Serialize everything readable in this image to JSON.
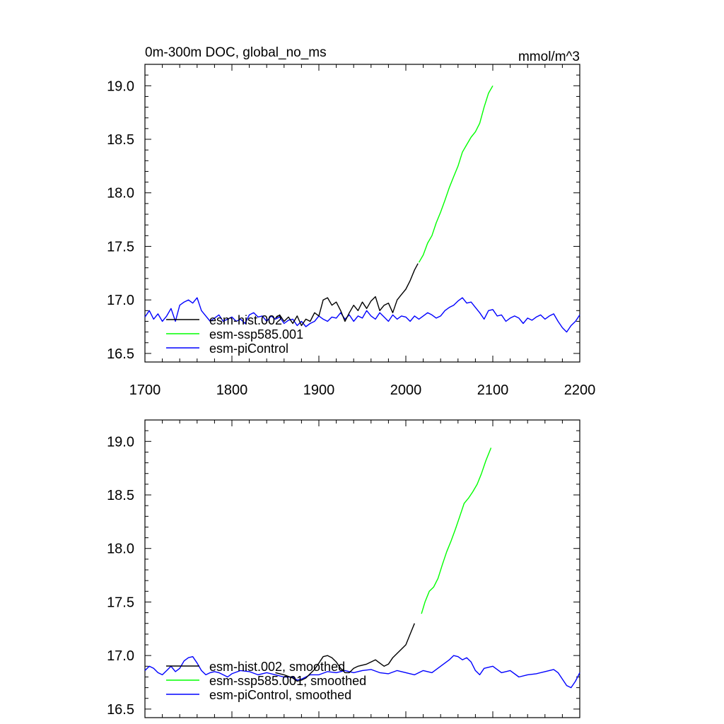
{
  "chart_data": [
    {
      "type": "line",
      "title": "0m-300m DOC, global_no_ms",
      "units": "mmol/m^3",
      "xlim": [
        1700,
        2200
      ],
      "ylim": [
        16.42,
        19.2
      ],
      "x_ticks": [
        "1700",
        "1800",
        "1900",
        "2000",
        "2100",
        "2200"
      ],
      "y_ticks": [
        "16.5",
        "17.0",
        "17.5",
        "18.0",
        "18.5",
        "19.0"
      ],
      "legend_position": "bottom-left",
      "series": [
        {
          "name": "esm-hist.002",
          "color": "#000000",
          "x": [
            1850,
            1855,
            1860,
            1865,
            1870,
            1875,
            1880,
            1885,
            1890,
            1895,
            1900,
            1905,
            1910,
            1915,
            1920,
            1925,
            1930,
            1935,
            1940,
            1945,
            1950,
            1955,
            1960,
            1965,
            1970,
            1975,
            1980,
            1985,
            1990,
            1995,
            2000,
            2005,
            2010,
            2014
          ],
          "y": [
            16.83,
            16.86,
            16.8,
            16.84,
            16.78,
            16.85,
            16.76,
            16.82,
            16.8,
            16.88,
            16.85,
            17.0,
            17.02,
            16.95,
            16.98,
            16.9,
            16.8,
            16.88,
            16.95,
            16.9,
            16.98,
            16.92,
            16.99,
            17.03,
            16.9,
            16.95,
            16.97,
            16.88,
            17.0,
            17.05,
            17.1,
            17.18,
            17.28,
            17.34
          ]
        },
        {
          "name": "esm-ssp585.001",
          "color": "#00ff00",
          "x": [
            2015,
            2020,
            2025,
            2030,
            2035,
            2040,
            2045,
            2050,
            2055,
            2060,
            2065,
            2070,
            2075,
            2080,
            2085,
            2090,
            2095,
            2100
          ],
          "y": [
            17.35,
            17.42,
            17.53,
            17.6,
            17.72,
            17.82,
            17.93,
            18.05,
            18.15,
            18.25,
            18.38,
            18.45,
            18.52,
            18.57,
            18.65,
            18.8,
            18.93,
            19.0
          ]
        },
        {
          "name": "esm-piControl",
          "color": "#0000ff",
          "x": [
            1700,
            1705,
            1710,
            1715,
            1720,
            1725,
            1730,
            1735,
            1740,
            1745,
            1750,
            1755,
            1760,
            1765,
            1770,
            1775,
            1780,
            1785,
            1790,
            1795,
            1800,
            1805,
            1810,
            1815,
            1820,
            1825,
            1830,
            1835,
            1840,
            1845,
            1850,
            1855,
            1860,
            1865,
            1870,
            1875,
            1880,
            1885,
            1890,
            1895,
            1900,
            1905,
            1910,
            1915,
            1920,
            1925,
            1930,
            1935,
            1940,
            1945,
            1950,
            1955,
            1960,
            1965,
            1970,
            1975,
            1980,
            1985,
            1990,
            1995,
            2000,
            2005,
            2010,
            2015,
            2020,
            2025,
            2030,
            2035,
            2040,
            2045,
            2050,
            2055,
            2060,
            2065,
            2070,
            2075,
            2080,
            2085,
            2090,
            2095,
            2100,
            2105,
            2110,
            2115,
            2120,
            2125,
            2130,
            2135,
            2140,
            2145,
            2150,
            2155,
            2160,
            2165,
            2170,
            2175,
            2180,
            2185,
            2190,
            2195,
            2200
          ],
          "y": [
            16.84,
            16.9,
            16.82,
            16.87,
            16.8,
            16.85,
            16.92,
            16.8,
            16.95,
            16.98,
            17.0,
            16.97,
            17.02,
            16.9,
            16.85,
            16.8,
            16.83,
            16.86,
            16.8,
            16.82,
            16.84,
            16.8,
            16.82,
            16.78,
            16.86,
            16.88,
            16.84,
            16.85,
            16.8,
            16.85,
            16.82,
            16.84,
            16.78,
            16.81,
            16.82,
            16.76,
            16.8,
            16.75,
            16.78,
            16.8,
            16.85,
            16.82,
            16.8,
            16.84,
            16.83,
            16.88,
            16.82,
            16.86,
            16.8,
            16.85,
            16.83,
            16.9,
            16.85,
            16.82,
            16.88,
            16.84,
            16.8,
            16.86,
            16.82,
            16.85,
            16.84,
            16.8,
            16.85,
            16.82,
            16.85,
            16.88,
            16.86,
            16.83,
            16.85,
            16.9,
            16.93,
            16.95,
            16.99,
            17.02,
            16.97,
            16.98,
            16.93,
            16.88,
            16.82,
            16.9,
            16.91,
            16.85,
            16.86,
            16.8,
            16.83,
            16.85,
            16.83,
            16.78,
            16.83,
            16.81,
            16.84,
            16.86,
            16.82,
            16.85,
            16.87,
            16.8,
            16.74,
            16.7,
            16.76,
            16.8,
            16.86
          ]
        }
      ]
    },
    {
      "type": "line",
      "title": "",
      "units": "",
      "xlim": [
        1700,
        2200
      ],
      "ylim": [
        16.42,
        19.2
      ],
      "y_ticks": [
        "16.5",
        "17.0",
        "17.5",
        "18.0",
        "18.5",
        "19.0"
      ],
      "legend_position": "bottom-left",
      "series": [
        {
          "name": "esm-hist.002, smoothed",
          "color": "#000000",
          "x": [
            1850,
            1860,
            1870,
            1875,
            1880,
            1885,
            1890,
            1895,
            1900,
            1905,
            1910,
            1915,
            1920,
            1925,
            1930,
            1935,
            1940,
            1945,
            1950,
            1955,
            1960,
            1965,
            1970,
            1975,
            1980,
            1985,
            1990,
            1995,
            2000,
            2005,
            2010
          ],
          "y": [
            16.84,
            16.82,
            16.79,
            16.76,
            16.77,
            16.79,
            16.83,
            16.87,
            16.93,
            16.99,
            17.0,
            16.98,
            16.94,
            16.88,
            16.84,
            16.84,
            16.88,
            16.9,
            16.91,
            16.92,
            16.94,
            16.96,
            16.93,
            16.9,
            16.92,
            16.98,
            17.02,
            17.06,
            17.1,
            17.2,
            17.3
          ]
        },
        {
          "name": "esm-ssp585.001, smoothed",
          "color": "#00ff00",
          "x": [
            2018,
            2022,
            2027,
            2032,
            2037,
            2042,
            2047,
            2052,
            2057,
            2062,
            2067,
            2072,
            2077,
            2082,
            2087,
            2092,
            2098
          ],
          "y": [
            17.39,
            17.5,
            17.6,
            17.64,
            17.72,
            17.85,
            17.97,
            18.07,
            18.18,
            18.3,
            18.42,
            18.47,
            18.53,
            18.6,
            18.7,
            18.82,
            18.94
          ]
        },
        {
          "name": "esm-piControl, smoothed",
          "color": "#0000ff",
          "x": [
            1700,
            1705,
            1710,
            1715,
            1720,
            1725,
            1730,
            1735,
            1740,
            1745,
            1750,
            1755,
            1760,
            1765,
            1770,
            1775,
            1780,
            1785,
            1790,
            1795,
            1800,
            1810,
            1820,
            1830,
            1840,
            1850,
            1860,
            1870,
            1875,
            1880,
            1885,
            1890,
            1900,
            1910,
            1920,
            1930,
            1940,
            1950,
            1960,
            1970,
            1980,
            1990,
            2000,
            2010,
            2020,
            2030,
            2040,
            2050,
            2055,
            2060,
            2065,
            2070,
            2075,
            2080,
            2085,
            2090,
            2100,
            2110,
            2120,
            2130,
            2140,
            2150,
            2160,
            2170,
            2175,
            2180,
            2185,
            2190,
            2195,
            2200
          ],
          "y": [
            16.86,
            16.9,
            16.88,
            16.84,
            16.82,
            16.86,
            16.9,
            16.85,
            16.88,
            16.95,
            16.98,
            16.99,
            16.93,
            16.86,
            16.82,
            16.84,
            16.85,
            16.84,
            16.82,
            16.8,
            16.83,
            16.86,
            16.85,
            16.82,
            16.84,
            16.82,
            16.8,
            16.8,
            16.77,
            16.78,
            16.8,
            16.82,
            16.82,
            16.85,
            16.84,
            16.86,
            16.84,
            16.86,
            16.87,
            16.84,
            16.83,
            16.86,
            16.84,
            16.82,
            16.86,
            16.84,
            16.9,
            16.96,
            17.0,
            16.99,
            16.96,
            16.98,
            16.94,
            16.86,
            16.82,
            16.88,
            16.9,
            16.84,
            16.86,
            16.8,
            16.82,
            16.83,
            16.85,
            16.87,
            16.84,
            16.78,
            16.72,
            16.7,
            16.76,
            16.84
          ]
        }
      ]
    }
  ]
}
